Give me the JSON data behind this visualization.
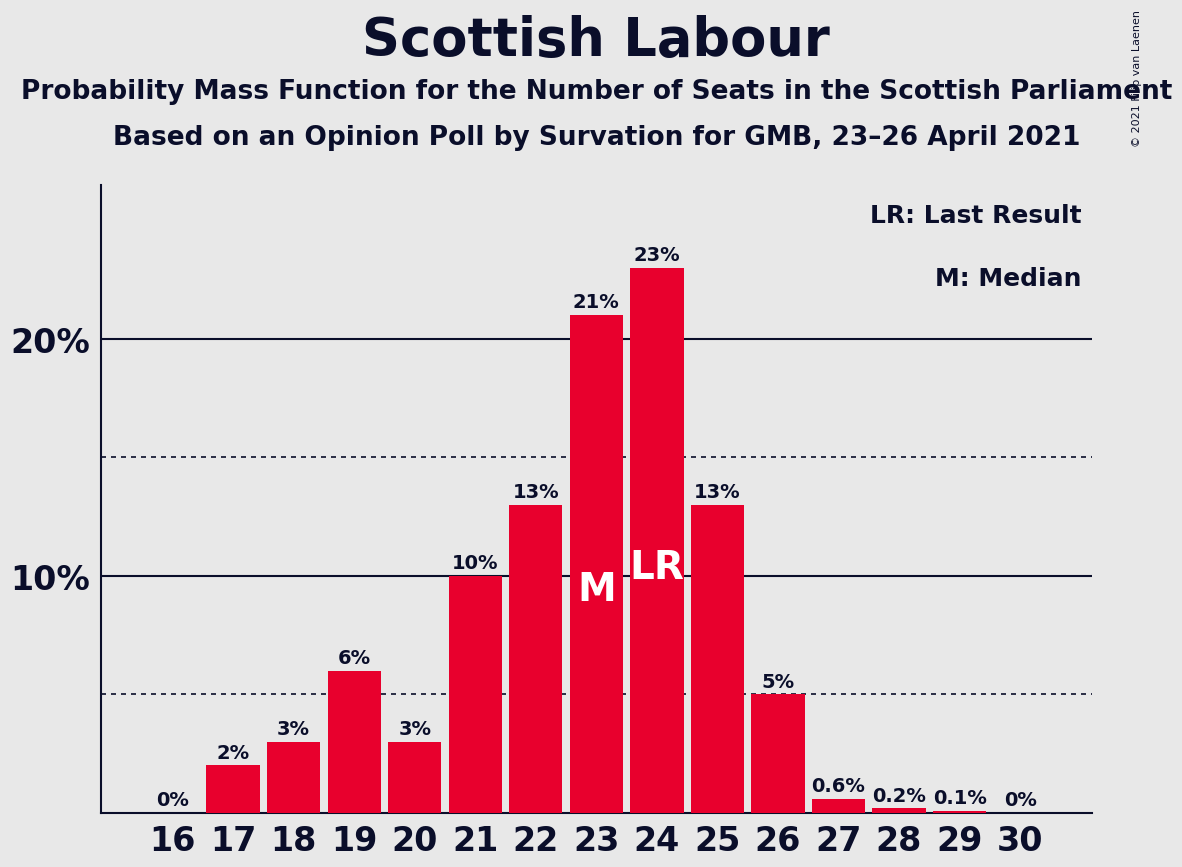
{
  "title": "Scottish Labour",
  "subtitle1": "Probability Mass Function for the Number of Seats in the Scottish Parliament",
  "subtitle2": "Based on an Opinion Poll by Survation for GMB, 23–26 April 2021",
  "copyright": "© 2021 Filip van Laenen",
  "categories": [
    16,
    17,
    18,
    19,
    20,
    21,
    22,
    23,
    24,
    25,
    26,
    27,
    28,
    29,
    30
  ],
  "values": [
    0.0,
    2.0,
    3.0,
    6.0,
    3.0,
    10.0,
    13.0,
    21.0,
    23.0,
    13.0,
    5.0,
    0.6,
    0.2,
    0.1,
    0.0
  ],
  "labels": [
    "0%",
    "2%",
    "3%",
    "6%",
    "3%",
    "10%",
    "13%",
    "21%",
    "23%",
    "13%",
    "5%",
    "0.6%",
    "0.2%",
    "0.1%",
    "0%"
  ],
  "bar_color": "#E8002D",
  "background_color": "#E8E8E8",
  "text_color": "#0a0e2a",
  "median_seat": 23,
  "last_result_seat": 24,
  "legend_lr": "LR: Last Result",
  "legend_m": "M: Median",
  "dotted_lines": [
    5.0,
    15.0
  ],
  "solid_lines": [
    10.0,
    20.0
  ],
  "ylim": [
    0,
    26.5
  ],
  "title_fontsize": 38,
  "subtitle_fontsize": 19,
  "axis_fontsize": 24,
  "label_fontsize": 14,
  "inner_label_fontsize": 28,
  "legend_fontsize": 18
}
